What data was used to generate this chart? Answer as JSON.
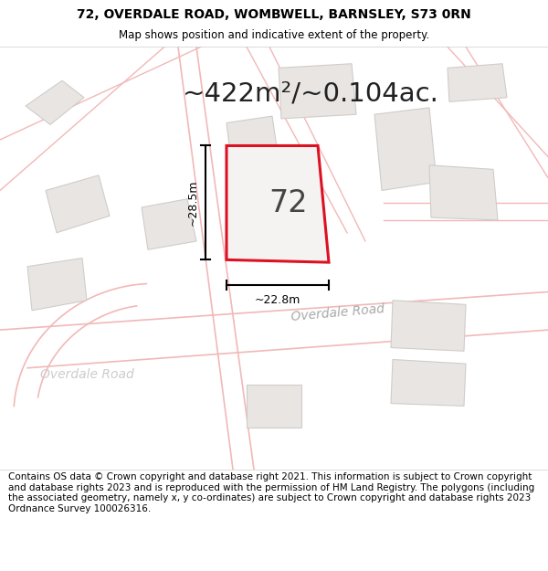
{
  "title_line1": "72, OVERDALE ROAD, WOMBWELL, BARNSLEY, S73 0RN",
  "title_line2": "Map shows position and indicative extent of the property.",
  "area_text": "~422m²/~0.104ac.",
  "property_number": "72",
  "dim_height": "~28.5m",
  "dim_width": "~22.8m",
  "road_label_bottom": "Overdale Road",
  "road_label_left": "Overdale Road",
  "footer_text": "Contains OS data © Crown copyright and database right 2021. This information is subject to Crown copyright and database rights 2023 and is reproduced with the permission of HM Land Registry. The polygons (including the associated geometry, namely x, y co-ordinates) are subject to Crown copyright and database rights 2023 Ordnance Survey 100026316.",
  "map_bg": "#f5f3f2",
  "building_fill": "#e8e5e3",
  "building_edge": "#d0ccc9",
  "property_fill": "#f5f3f2",
  "property_edge": "#dd1122",
  "road_line_color": "#f2b8b8",
  "road_fill_color": "#faf8f7",
  "title_fontsize": 10,
  "area_fontsize": 21,
  "number_fontsize": 24,
  "dim_fontsize": 9,
  "road_label_fontsize": 10,
  "footer_fontsize": 7.5
}
